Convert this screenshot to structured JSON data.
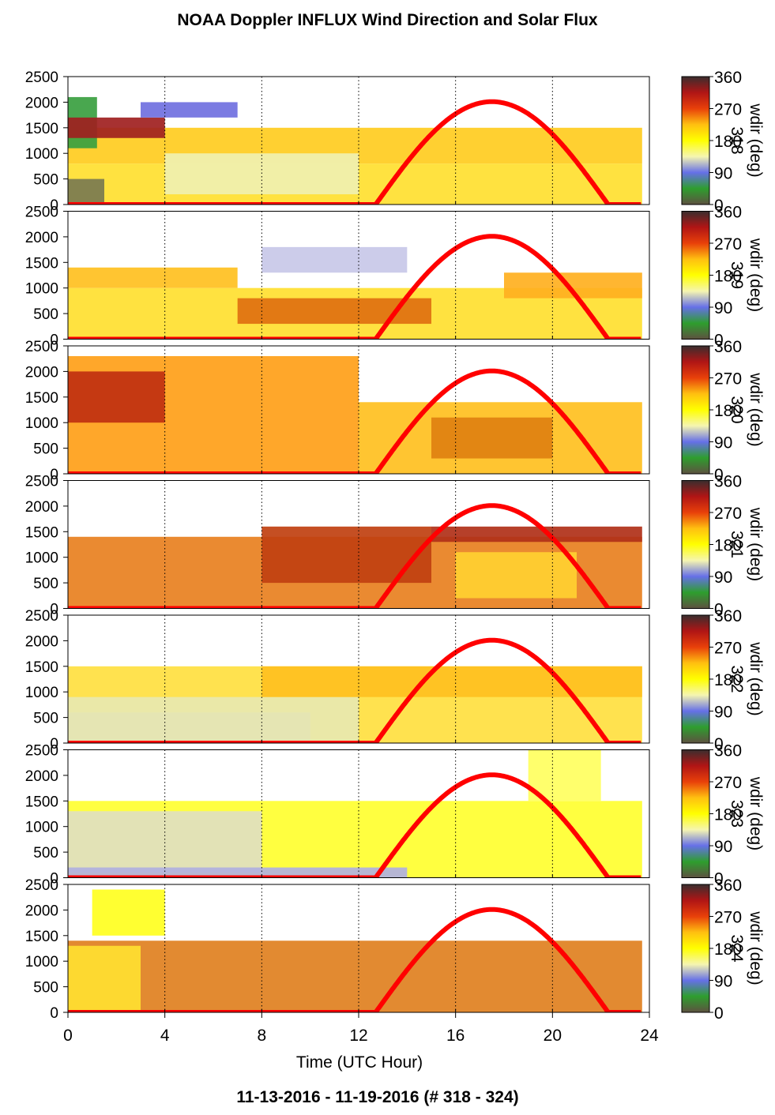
{
  "title": "NOAA Doppler INFLUX Wind Direction and Solar Flux",
  "footer": "11-13-2016 - 11-19-2016   (# 318 - 324)",
  "chart_data": {
    "type": "heatmap",
    "xlabel": "Time (UTC Hour)",
    "xlim": [
      0,
      24
    ],
    "xticks": [
      0,
      4,
      8,
      12,
      16,
      20,
      24
    ],
    "ylim": [
      0,
      2500
    ],
    "yticks": [
      0,
      500,
      1000,
      1500,
      2000,
      2500
    ],
    "grid": "vertical dotted at 4, 8, 12, 16, 20, 24",
    "colorbar": {
      "label": "wdir (deg)",
      "ticks": [
        0,
        90,
        180,
        270,
        360
      ],
      "tick_labels": [
        "0",
        "90",
        "180",
        "270",
        "360"
      ],
      "colors": [
        "#5e5140",
        "#2e9e2e",
        "#6670e8",
        "#f5f5b0",
        "#ffff00",
        "#ffc010",
        "#e8400a",
        "#b01515",
        "#3a2e2e"
      ]
    },
    "solar_flux_curve": {
      "color": "#ff0000",
      "x": [
        0,
        12.7,
        14,
        15,
        16,
        17,
        17.5,
        18,
        19,
        20,
        21,
        22.3,
        23.7
      ],
      "y": [
        0,
        0,
        1000,
        1520,
        1860,
        2000,
        2010,
        2000,
        1860,
        1520,
        1000,
        0,
        0
      ]
    },
    "panels": [
      {
        "day": "318",
        "colorbar_label": "wdir (deg)",
        "colorbar_day": "318",
        "layers": [
          {
            "h0": 0,
            "h1": 800,
            "t0": 0,
            "t1": 23.7,
            "color": "#ffe030"
          },
          {
            "h0": 800,
            "h1": 1500,
            "t0": 0,
            "t1": 23.7,
            "color": "#ffcc20"
          },
          {
            "h0": 0,
            "h1": 500,
            "t0": 0,
            "t1": 1.5,
            "color": "#7a7a50"
          },
          {
            "h0": 1100,
            "h1": 2100,
            "t0": 0,
            "t1": 1.2,
            "color": "#3aa040"
          },
          {
            "h0": 1300,
            "h1": 1700,
            "t0": 0,
            "t1": 4,
            "color": "#a02020"
          },
          {
            "h0": 1700,
            "h1": 2000,
            "t0": 3,
            "t1": 7,
            "color": "#7070e0"
          },
          {
            "h0": 200,
            "h1": 1000,
            "t0": 4,
            "t1": 12,
            "color": "#f0f0b0"
          }
        ]
      },
      {
        "day": "319",
        "colorbar_label": "wdir (deg)",
        "colorbar_day": "319",
        "layers": [
          {
            "h0": 0,
            "h1": 1000,
            "t0": 0,
            "t1": 23.7,
            "color": "#ffe030"
          },
          {
            "h0": 1000,
            "h1": 1400,
            "t0": 0,
            "t1": 7,
            "color": "#ffc020"
          },
          {
            "h0": 300,
            "h1": 800,
            "t0": 7,
            "t1": 15,
            "color": "#e07010"
          },
          {
            "h0": 1300,
            "h1": 1800,
            "t0": 8,
            "t1": 14,
            "color": "#c8c8e8"
          },
          {
            "h0": 800,
            "h1": 1300,
            "t0": 18,
            "t1": 23.7,
            "color": "#ffb020"
          }
        ]
      },
      {
        "day": "320",
        "colorbar_label": "wdir (deg)",
        "colorbar_day": "320",
        "layers": [
          {
            "h0": 0,
            "h1": 2300,
            "t0": 0,
            "t1": 12,
            "color": "#ffa018"
          },
          {
            "h0": 1000,
            "h1": 2000,
            "t0": 0,
            "t1": 4,
            "color": "#c03010"
          },
          {
            "h0": 0,
            "h1": 1400,
            "t0": 12,
            "t1": 23.7,
            "color": "#ffc020"
          },
          {
            "h0": 300,
            "h1": 1100,
            "t0": 15,
            "t1": 20,
            "color": "#e08010"
          }
        ]
      },
      {
        "day": "321",
        "colorbar_label": "wdir (deg)",
        "colorbar_day": "321",
        "layers": [
          {
            "h0": 0,
            "h1": 1400,
            "t0": 0,
            "t1": 23.7,
            "color": "#e88020"
          },
          {
            "h0": 500,
            "h1": 1600,
            "t0": 8,
            "t1": 15,
            "color": "#c04010"
          },
          {
            "h0": 1300,
            "h1": 1600,
            "t0": 15,
            "t1": 23.7,
            "color": "#b03018"
          },
          {
            "h0": 200,
            "h1": 1100,
            "t0": 16,
            "t1": 21,
            "color": "#ffd030"
          }
        ]
      },
      {
        "day": "322",
        "colorbar_label": "wdir (deg)",
        "colorbar_day": "322",
        "layers": [
          {
            "h0": 0,
            "h1": 1500,
            "t0": 0,
            "t1": 23.7,
            "color": "#ffe040"
          },
          {
            "h0": 0,
            "h1": 600,
            "t0": 0,
            "t1": 10,
            "color": "#b8b8e0"
          },
          {
            "h0": 0,
            "h1": 900,
            "t0": 0,
            "t1": 12,
            "color": "#e8e8b0"
          },
          {
            "h0": 900,
            "h1": 1500,
            "t0": 8,
            "t1": 23.7,
            "color": "#ffc020"
          }
        ]
      },
      {
        "day": "323",
        "colorbar_label": "wdir (deg)",
        "colorbar_day": "323",
        "layers": [
          {
            "h0": 0,
            "h1": 1500,
            "t0": 0,
            "t1": 23.7,
            "color": "#ffff30"
          },
          {
            "h0": 100,
            "h1": 1300,
            "t0": 0,
            "t1": 8,
            "color": "#e0e0c0"
          },
          {
            "h0": 0,
            "h1": 200,
            "t0": 0,
            "t1": 14,
            "color": "#b0b0e0"
          },
          {
            "h0": 1500,
            "h1": 2500,
            "t0": 19,
            "t1": 22,
            "color": "#ffff60"
          }
        ]
      },
      {
        "day": "324",
        "colorbar_label": "wdir (deg)",
        "colorbar_day": "324",
        "layers": [
          {
            "h0": 0,
            "h1": 1400,
            "t0": 0,
            "t1": 23.7,
            "color": "#e08020"
          },
          {
            "h0": 0,
            "h1": 1300,
            "t0": 0,
            "t1": 3,
            "color": "#ffe030"
          },
          {
            "h0": 1500,
            "h1": 2400,
            "t0": 1,
            "t1": 4,
            "color": "#ffff20"
          }
        ]
      }
    ]
  }
}
